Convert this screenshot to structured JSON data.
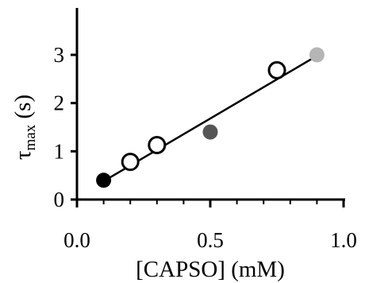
{
  "chart_data": {
    "type": "scatter",
    "title": "",
    "xlabel": "[CAPSO] (mM)",
    "ylabel": {
      "symbol": "τ",
      "subscript": "max",
      "unit": " (s)"
    },
    "xlim": [
      0,
      1.0
    ],
    "ylim": [
      0,
      3.6
    ],
    "x_ticks": [
      0,
      0.5,
      1.0
    ],
    "x_tick_labels": [
      "0.0",
      "0.5",
      "1.0"
    ],
    "y_ticks": [
      0,
      1,
      2,
      3
    ],
    "y_tick_labels": [
      "0",
      "1",
      "2",
      "3"
    ],
    "x_minor_ticks": [
      0.1,
      0.2,
      0.3,
      0.4,
      0.6,
      0.7,
      0.8,
      0.9
    ],
    "grid": false,
    "legend": "none",
    "series": [
      {
        "style": "filled-black",
        "color": "#000000",
        "points": [
          {
            "x": 0.1,
            "y": 0.4
          }
        ]
      },
      {
        "style": "open-circle",
        "color": "#000000",
        "points": [
          {
            "x": 0.2,
            "y": 0.78
          },
          {
            "x": 0.3,
            "y": 1.13
          },
          {
            "x": 0.75,
            "y": 2.68
          }
        ]
      },
      {
        "style": "filled-dark-gray",
        "color": "#555555",
        "points": [
          {
            "x": 0.5,
            "y": 1.4
          }
        ]
      },
      {
        "style": "filled-light-gray",
        "color": "#b5b5b5",
        "points": [
          {
            "x": 0.9,
            "y": 3.0
          }
        ]
      }
    ],
    "fit_line": {
      "x": [
        0.1,
        0.9
      ],
      "y": [
        0.38,
        2.98
      ]
    }
  }
}
